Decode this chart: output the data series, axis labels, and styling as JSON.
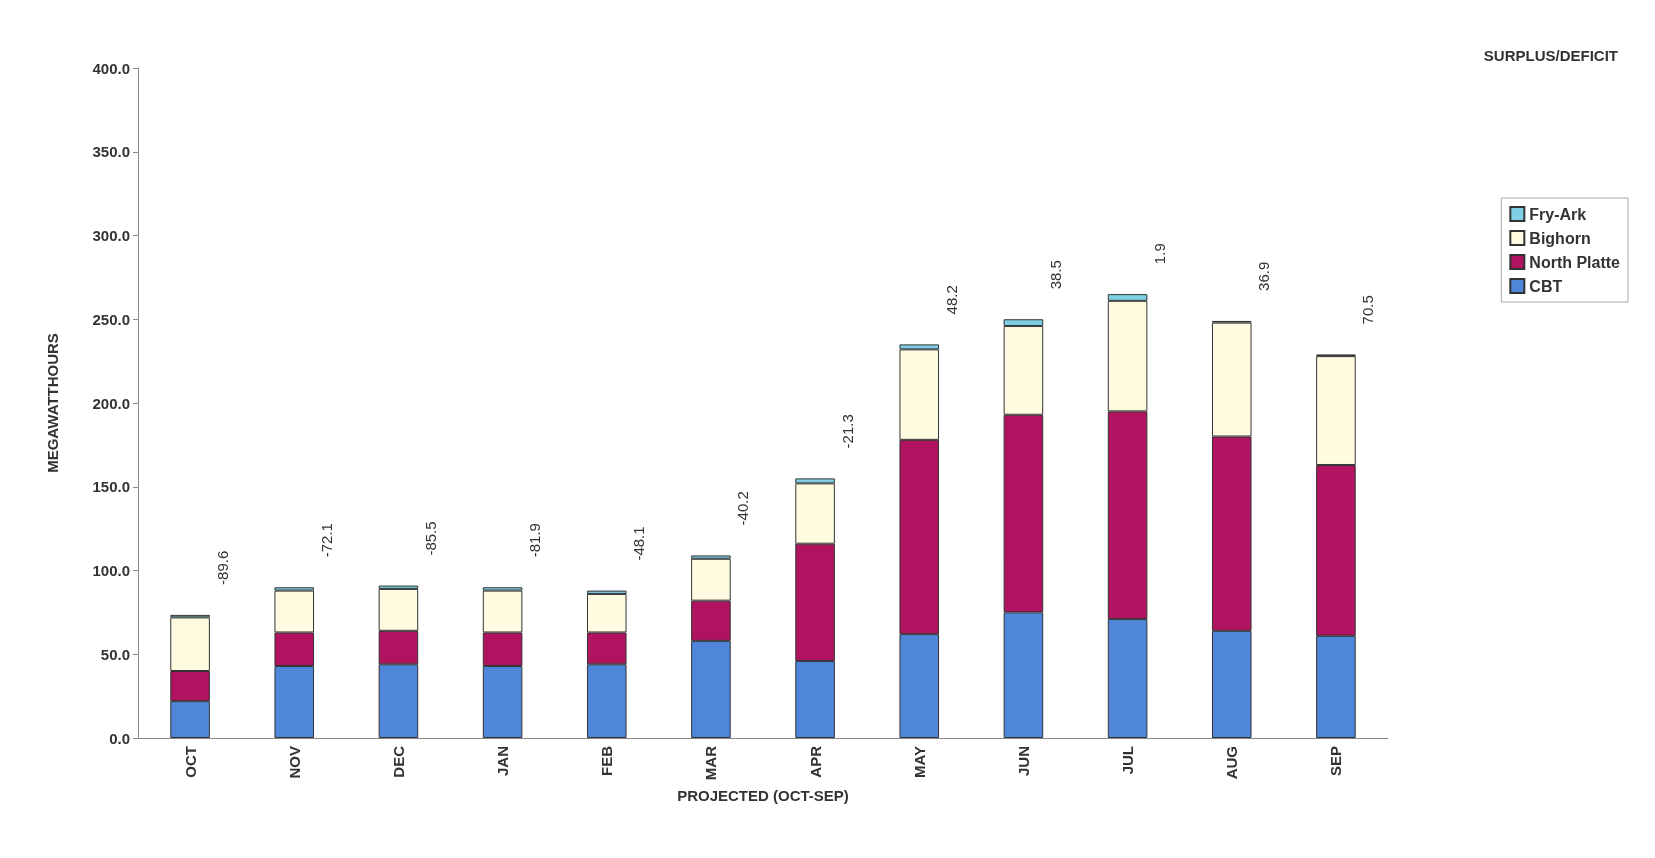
{
  "chart_data": {
    "type": "bar",
    "stacked": true,
    "xlabel": "PROJECTED (OCT-SEP)",
    "ylabel": "MEGAWATTHOURS",
    "categories": [
      "OCT",
      "NOV",
      "DEC",
      "JAN",
      "FEB",
      "MAR",
      "APR",
      "MAY",
      "JUN",
      "JUL",
      "AUG",
      "SEP"
    ],
    "series": [
      {
        "name": "CBT",
        "color": "#4f86d9",
        "values": [
          22,
          43,
          44,
          43,
          44,
          58,
          46,
          62,
          75,
          71,
          64,
          61
        ]
      },
      {
        "name": "North Platte",
        "color": "#b0135f",
        "values": [
          18,
          20,
          20,
          20,
          19,
          24,
          70,
          116,
          118,
          124,
          116,
          102
        ]
      },
      {
        "name": "Bighorn",
        "color": "#fffbe0",
        "values": [
          32,
          25,
          25,
          25,
          23,
          25,
          36,
          54,
          53,
          66,
          68,
          65
        ]
      },
      {
        "name": "Fry-Ark",
        "color": "#7fd0e6",
        "values": [
          1.5,
          2,
          2,
          2,
          2,
          2,
          3,
          3,
          4,
          4,
          1,
          1
        ]
      }
    ],
    "ylim": [
      0,
      400
    ],
    "yticks": [
      {
        "value": 0,
        "label": "0.0"
      },
      {
        "value": 50,
        "label": "50.0"
      },
      {
        "value": 100,
        "label": "100.0"
      },
      {
        "value": 150,
        "label": "150.0"
      },
      {
        "value": 200,
        "label": "200.0"
      },
      {
        "value": 250,
        "label": "250.0"
      },
      {
        "value": 300,
        "label": "300.0"
      },
      {
        "value": 350,
        "label": "350.0"
      },
      {
        "value": 400,
        "label": "400.0"
      }
    ],
    "grid": false,
    "legend": "right",
    "annotations": [
      "SURPLUS/DEFICIT",
      "-89.6",
      "-72.1",
      "-85.5",
      "-81.9",
      "-48.1",
      "-40.2",
      "-21.3",
      "48.2",
      "38.5",
      "1.9",
      "36.9",
      "70.5"
    ]
  }
}
